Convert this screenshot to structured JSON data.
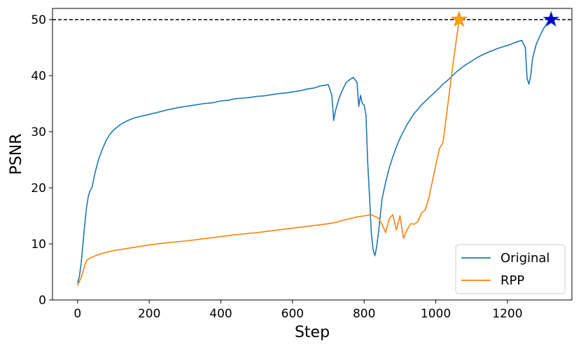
{
  "chart_data": {
    "type": "line",
    "xlabel": "Step",
    "ylabel": "PSNR",
    "xlim": [
      -70,
      1380
    ],
    "ylim": [
      0,
      52
    ],
    "xticks": [
      0,
      200,
      400,
      600,
      800,
      1000,
      1200
    ],
    "yticks": [
      0,
      10,
      20,
      30,
      40,
      50
    ],
    "grid": false,
    "legend_position": "lower right",
    "reference_line": {
      "y": 50,
      "style": "dashed",
      "color": "#000000"
    },
    "series": [
      {
        "name": "Original",
        "color": "#1f77b4",
        "x": [
          0,
          5,
          10,
          15,
          20,
          25,
          30,
          35,
          40,
          45,
          50,
          55,
          60,
          70,
          80,
          90,
          100,
          120,
          140,
          160,
          180,
          200,
          220,
          250,
          280,
          300,
          320,
          350,
          380,
          400,
          420,
          440,
          460,
          480,
          500,
          520,
          540,
          560,
          580,
          600,
          620,
          640,
          660,
          680,
          700,
          710,
          715,
          720,
          730,
          740,
          750,
          760,
          770,
          780,
          785,
          790,
          795,
          800,
          805,
          810,
          815,
          820,
          825,
          830,
          835,
          840,
          845,
          850,
          860,
          870,
          880,
          890,
          900,
          910,
          920,
          930,
          940,
          950,
          960,
          970,
          980,
          990,
          1000,
          1010,
          1020,
          1030,
          1040,
          1050,
          1060,
          1070,
          1080,
          1090,
          1100,
          1110,
          1120,
          1130,
          1140,
          1150,
          1160,
          1170,
          1180,
          1190,
          1200,
          1210,
          1220,
          1230,
          1240,
          1250,
          1255,
          1260,
          1265,
          1270,
          1280,
          1290,
          1300,
          1310,
          1320
        ],
        "y": [
          3.0,
          4.2,
          6.5,
          10.0,
          13.5,
          16.5,
          18.5,
          19.5,
          20.0,
          21.5,
          23.0,
          24.2,
          25.3,
          27.0,
          28.5,
          29.5,
          30.3,
          31.3,
          32.0,
          32.5,
          32.8,
          33.1,
          33.4,
          33.9,
          34.3,
          34.5,
          34.7,
          35.0,
          35.2,
          35.5,
          35.6,
          35.9,
          36.0,
          36.1,
          36.3,
          36.4,
          36.6,
          36.8,
          36.9,
          37.1,
          37.3,
          37.6,
          37.8,
          38.2,
          38.4,
          36.5,
          32.0,
          33.8,
          36.0,
          37.5,
          38.8,
          39.3,
          39.7,
          38.8,
          34.5,
          36.5,
          35.0,
          34.8,
          33.0,
          24.5,
          18.5,
          12.0,
          9.0,
          7.9,
          9.5,
          12.0,
          15.0,
          18.0,
          21.0,
          23.5,
          25.5,
          27.3,
          28.8,
          30.1,
          31.3,
          32.3,
          33.3,
          34.0,
          34.8,
          35.4,
          36.0,
          36.6,
          37.2,
          37.8,
          38.5,
          39.0,
          39.6,
          40.2,
          40.8,
          41.3,
          41.8,
          42.2,
          42.6,
          43.0,
          43.4,
          43.7,
          44.0,
          44.3,
          44.5,
          44.8,
          45.0,
          45.2,
          45.4,
          45.6,
          45.9,
          46.1,
          46.3,
          45.0,
          39.5,
          38.5,
          40.0,
          43.0,
          45.5,
          47.0,
          48.3,
          49.3,
          50.0
        ]
      },
      {
        "name": "RPP",
        "color": "#ff7f0e",
        "x": [
          0,
          5,
          10,
          15,
          20,
          25,
          30,
          40,
          50,
          60,
          80,
          100,
          120,
          150,
          180,
          200,
          250,
          300,
          350,
          400,
          450,
          500,
          550,
          600,
          650,
          700,
          720,
          740,
          760,
          780,
          800,
          820,
          840,
          850,
          860,
          870,
          880,
          890,
          900,
          910,
          920,
          930,
          940,
          950,
          960,
          970,
          980,
          990,
          1000,
          1010,
          1020,
          1030,
          1040,
          1050,
          1060,
          1065
        ],
        "y": [
          2.5,
          3.3,
          4.0,
          5.0,
          6.2,
          7.0,
          7.3,
          7.6,
          7.9,
          8.1,
          8.5,
          8.8,
          9.0,
          9.3,
          9.6,
          9.8,
          10.2,
          10.5,
          10.9,
          11.3,
          11.7,
          12.0,
          12.4,
          12.8,
          13.2,
          13.6,
          13.8,
          14.2,
          14.5,
          14.8,
          15.0,
          15.2,
          14.6,
          13.5,
          12.0,
          14.5,
          15.2,
          12.5,
          15.0,
          11.0,
          12.5,
          13.6,
          13.5,
          14.0,
          15.5,
          16.0,
          18.0,
          21.0,
          24.0,
          27.0,
          28.0,
          33.0,
          38.0,
          43.0,
          47.5,
          50.0
        ]
      }
    ],
    "markers": [
      {
        "series": "RPP",
        "shape": "star",
        "x": 1065,
        "y": 50,
        "fill": "#ffa500",
        "stroke": "#ff7f0e"
      },
      {
        "series": "Original",
        "shape": "star",
        "x": 1322,
        "y": 50,
        "fill": "#0000cc",
        "stroke": "#1f3fbf"
      }
    ]
  }
}
